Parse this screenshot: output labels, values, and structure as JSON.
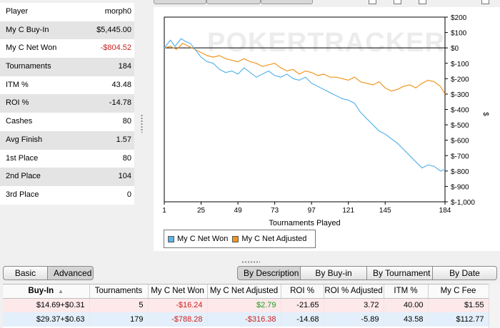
{
  "stats": [
    {
      "label": "Player",
      "value": "morph0"
    },
    {
      "label": "My C Buy-In",
      "value": "$5,445.00"
    },
    {
      "label": "My C Net Won",
      "value": "-$804.52",
      "negative": true
    },
    {
      "label": "Tournaments",
      "value": "184"
    },
    {
      "label": "ITM %",
      "value": "43.48"
    },
    {
      "label": "ROI %",
      "value": "-14.78"
    },
    {
      "label": "Cashes",
      "value": "80"
    },
    {
      "label": "Avg Finish",
      "value": "1.57"
    },
    {
      "label": "1st Place",
      "value": "80"
    },
    {
      "label": "2nd Place",
      "value": "104"
    },
    {
      "label": "3rd Place",
      "value": "0"
    }
  ],
  "chart": {
    "watermark": "POKERTRACKER",
    "xlabel": "Tournaments Played",
    "ylabel": "$",
    "legend": [
      "My C Net Won",
      "My C Net Adjusted"
    ]
  },
  "chart_data": {
    "type": "line",
    "xlabel": "Tournaments Played",
    "ylabel": "$",
    "xlim": [
      1,
      184
    ],
    "ylim": [
      -1000,
      200
    ],
    "x_ticks": [
      "1",
      "25",
      "49",
      "73",
      "97",
      "121",
      "145",
      "184"
    ],
    "y_ticks": [
      "$200",
      "$100",
      "$0",
      "$-100",
      "$-200",
      "$-300",
      "$-400",
      "$-500",
      "$-600",
      "$-700",
      "$-800",
      "$-900",
      "$-1,000"
    ],
    "legend_position": "bottom-left",
    "grid": false,
    "series": [
      {
        "name": "My C Net Won",
        "color": "#5ab4e8",
        "x": [
          1,
          5,
          8,
          12,
          15,
          18,
          21,
          25,
          29,
          33,
          37,
          41,
          45,
          49,
          53,
          57,
          61,
          65,
          69,
          73,
          77,
          81,
          85,
          89,
          93,
          97,
          101,
          105,
          109,
          113,
          117,
          121,
          125,
          129,
          133,
          137,
          141,
          145,
          149,
          153,
          157,
          161,
          165,
          169,
          173,
          177,
          181,
          184
        ],
        "y": [
          0,
          50,
          10,
          60,
          40,
          30,
          -10,
          -60,
          -90,
          -100,
          -140,
          -160,
          -150,
          -170,
          -130,
          -160,
          -190,
          -170,
          -150,
          -180,
          -190,
          -170,
          -200,
          -210,
          -190,
          -230,
          -250,
          -270,
          -290,
          -310,
          -330,
          -340,
          -360,
          -420,
          -460,
          -500,
          -540,
          -560,
          -590,
          -620,
          -660,
          -700,
          -740,
          -780,
          -760,
          -770,
          -800,
          -790
        ]
      },
      {
        "name": "My C Net Adjusted",
        "color": "#f0961e",
        "x": [
          1,
          5,
          9,
          13,
          17,
          21,
          25,
          29,
          33,
          37,
          41,
          45,
          49,
          53,
          57,
          61,
          65,
          69,
          73,
          77,
          81,
          85,
          89,
          93,
          97,
          101,
          105,
          109,
          113,
          117,
          121,
          125,
          129,
          133,
          137,
          141,
          145,
          149,
          153,
          157,
          161,
          165,
          169,
          173,
          177,
          181,
          184
        ],
        "y": [
          0,
          10,
          -10,
          30,
          10,
          -10,
          -30,
          -50,
          -60,
          -50,
          -70,
          -80,
          -90,
          -70,
          -90,
          -100,
          -120,
          -110,
          -100,
          -130,
          -150,
          -140,
          -170,
          -150,
          -160,
          -180,
          -170,
          -190,
          -190,
          -200,
          -210,
          -190,
          -220,
          -230,
          -240,
          -220,
          -260,
          -280,
          -270,
          -250,
          -240,
          -260,
          -230,
          -210,
          -220,
          -250,
          -300
        ]
      }
    ]
  },
  "buttons": {
    "basic": "Basic",
    "advanced": "Advanced",
    "by_description": "By Description",
    "by_buyin": "By Buy-in",
    "by_tournament": "By Tournament",
    "by_date": "By Date"
  },
  "table": {
    "columns": [
      "Buy-In",
      "Tournaments",
      "My C Net Won",
      "My C Net Adjusted",
      "ROI %",
      "ROI % Adjusted",
      "ITM %",
      "My C Fee"
    ],
    "rows": [
      [
        "$14.69+$0.31",
        "5",
        "-$16.24",
        "$2.79",
        "-21.65",
        "3.72",
        "40.00",
        "$1.55"
      ],
      [
        "$29.37+$0.63",
        "179",
        "-$788.28",
        "-$316.38",
        "-14.68",
        "-5.89",
        "43.58",
        "$112.77"
      ]
    ],
    "row_colors": [
      "#fde8ea",
      "#e3f0fb"
    ]
  }
}
